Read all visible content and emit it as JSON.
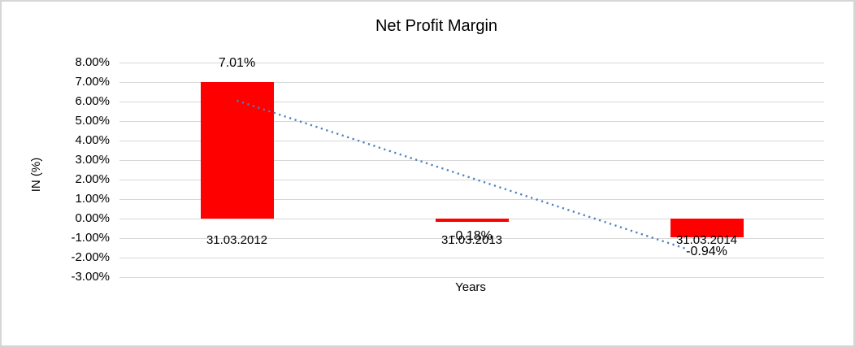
{
  "chart_data": {
    "type": "bar",
    "title": "Net Profit Margin",
    "xlabel": "Years",
    "ylabel": "IN (%)",
    "categories": [
      "31.03.2012",
      "31.03.2013",
      "31.03.2014"
    ],
    "values": [
      7.01,
      -0.18,
      -0.94
    ],
    "data_labels": [
      "7.01%",
      "-0.18%",
      "-0.94%"
    ],
    "ylim": [
      -3,
      8
    ],
    "yticks": [
      {
        "value": 8,
        "label": "8.00%"
      },
      {
        "value": 7,
        "label": "7.00%"
      },
      {
        "value": 6,
        "label": "6.00%"
      },
      {
        "value": 5,
        "label": "5.00%"
      },
      {
        "value": 4,
        "label": "4.00%"
      },
      {
        "value": 3,
        "label": "3.00%"
      },
      {
        "value": 2,
        "label": "2.00%"
      },
      {
        "value": 1,
        "label": "1.00%"
      },
      {
        "value": 0,
        "label": "0.00%"
      },
      {
        "value": -1,
        "label": "-1.00%"
      },
      {
        "value": -2,
        "label": "-2.00%"
      },
      {
        "value": -3,
        "label": "-3.00%"
      }
    ],
    "grid": true,
    "legend": "none",
    "colors": {
      "bar": "#ff0000",
      "gridline": "#d8d8d8",
      "text": "#000000",
      "frame_border": "#d6d6d6",
      "trendline": "#4e81bd"
    },
    "trendline": {
      "style": "dotted",
      "color": "#4e81bd",
      "points": [
        {
          "cat": 0.0,
          "value": 6.05
        },
        {
          "cat": 1.92,
          "value": -1.58
        }
      ]
    }
  }
}
